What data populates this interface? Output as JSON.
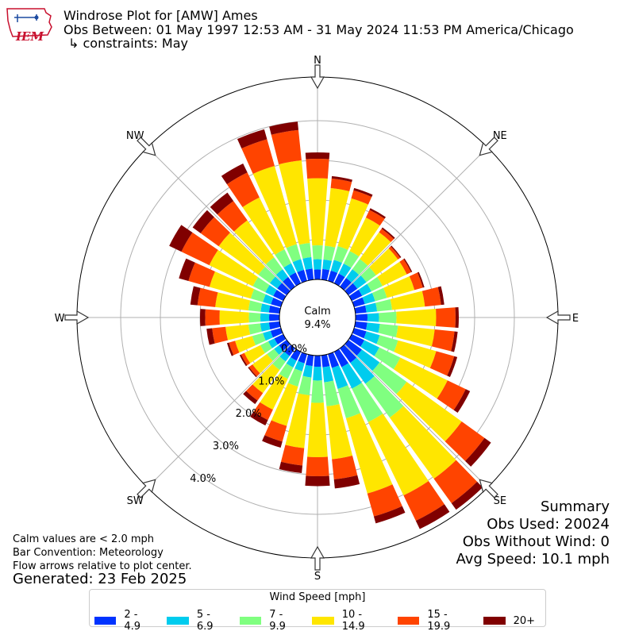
{
  "header": {
    "title": "Windrose Plot for [AMW] Ames",
    "period": "Obs Between: 01 May 1997 12:53 AM - 31 May 2024 11:53 PM America/Chicago",
    "constraints": "↳ constraints: May",
    "logo_text": "IEM"
  },
  "notes": {
    "calm_note": "Calm values are < 2.0 mph",
    "bar_convention": "Bar Convention: Meteorology",
    "flow_note": "Flow arrows relative to plot center.",
    "generated": "Generated: 23 Feb 2025"
  },
  "summary": {
    "heading": "Summary",
    "obs_used": "Obs Used: 20024",
    "obs_without_wind": "Obs Without Wind: 0",
    "avg_speed": "Avg Speed: 10.1 mph"
  },
  "legend": {
    "title": "Wind Speed [mph]",
    "items": [
      {
        "label": "2 - 4.9",
        "color": "#0033ff"
      },
      {
        "label": "5 - 6.9",
        "color": "#00ccee"
      },
      {
        "label": "7 - 9.9",
        "color": "#80ff80"
      },
      {
        "label": "10 - 14.9",
        "color": "#ffe600"
      },
      {
        "label": "15 - 19.9",
        "color": "#ff4400"
      },
      {
        "label": "20+",
        "color": "#800000"
      }
    ]
  },
  "chart_data": {
    "type": "windrose",
    "calm_label": "Calm",
    "calm_value": "9.4%",
    "radial_ticks": [
      "0.0%",
      "1.0%",
      "2.0%",
      "3.0%",
      "4.0%"
    ],
    "radial_tick_values": [
      0,
      1,
      2,
      3,
      4
    ],
    "compass_labels": [
      "N",
      "NE",
      "E",
      "SE",
      "S",
      "SW",
      "W",
      "NW"
    ],
    "directions_deg": [
      0,
      10,
      20,
      30,
      40,
      50,
      60,
      70,
      80,
      90,
      100,
      110,
      120,
      130,
      140,
      150,
      160,
      170,
      180,
      190,
      200,
      210,
      220,
      230,
      240,
      250,
      260,
      270,
      280,
      290,
      300,
      310,
      320,
      330,
      340,
      350
    ],
    "bins": [
      "2 - 4.9",
      "5 - 6.9",
      "7 - 9.9",
      "10 - 14.9",
      "15 - 19.9",
      "20+"
    ],
    "cumulative_percent": [
      [
        0.25,
        0.51,
        0.86,
        2.55,
        3.04,
        3.2
      ],
      [
        0.27,
        0.51,
        0.86,
        2.32,
        2.56,
        2.62
      ],
      [
        0.27,
        0.55,
        0.91,
        2.16,
        2.37,
        2.43
      ],
      [
        0.27,
        0.55,
        0.9,
        1.84,
        2.05,
        2.1
      ],
      [
        0.27,
        0.54,
        0.86,
        1.69,
        1.8,
        1.84
      ],
      [
        0.28,
        0.56,
        0.86,
        1.54,
        1.61,
        1.64
      ],
      [
        0.29,
        0.55,
        0.86,
        1.54,
        1.66,
        1.69
      ],
      [
        0.28,
        0.55,
        0.86,
        1.58,
        1.8,
        1.84
      ],
      [
        0.28,
        0.55,
        0.93,
        1.76,
        2.17,
        2.25
      ],
      [
        0.3,
        0.59,
        1.03,
        2.03,
        2.52,
        2.6
      ],
      [
        0.3,
        0.62,
        1.08,
        2.01,
        2.51,
        2.59
      ],
      [
        0.32,
        0.67,
        1.15,
        2.15,
        2.62,
        2.7
      ],
      [
        0.35,
        0.77,
        1.36,
        2.68,
        3.19,
        3.31
      ],
      [
        0.42,
        0.97,
        1.81,
        3.52,
        4.23,
        4.43
      ],
      [
        0.45,
        1.1,
        2.15,
        4.05,
        4.81,
        5.01
      ],
      [
        0.43,
        1.03,
        1.97,
        4.02,
        4.73,
        4.96
      ],
      [
        0.36,
        0.91,
        1.68,
        3.65,
        4.25,
        4.43
      ],
      [
        0.3,
        0.68,
        1.29,
        2.63,
        3.14,
        3.37
      ],
      [
        0.28,
        0.63,
        1.19,
        2.56,
        3.04,
        3.29
      ],
      [
        0.27,
        0.56,
        1.01,
        2.35,
        2.79,
        2.98
      ],
      [
        0.24,
        0.45,
        0.85,
        1.88,
        2.29,
        2.45
      ],
      [
        0.25,
        0.44,
        0.76,
        1.62,
        1.91,
        2.06
      ],
      [
        0.24,
        0.41,
        0.67,
        1.39,
        1.62,
        1.73
      ],
      [
        0.24,
        0.39,
        0.61,
        1.06,
        1.17,
        1.2
      ],
      [
        0.25,
        0.42,
        0.64,
        1.09,
        1.18,
        1.22
      ],
      [
        0.27,
        0.47,
        0.75,
        1.2,
        1.36,
        1.41
      ],
      [
        0.27,
        0.49,
        0.79,
        1.37,
        1.71,
        1.85
      ],
      [
        0.26,
        0.48,
        0.77,
        1.51,
        1.87,
        2.0
      ],
      [
        0.27,
        0.48,
        0.79,
        1.63,
        2.08,
        2.26
      ],
      [
        0.26,
        0.47,
        0.79,
        1.87,
        2.42,
        2.67
      ],
      [
        0.28,
        0.5,
        0.85,
        2.07,
        2.85,
        3.19
      ],
      [
        0.29,
        0.52,
        0.88,
        2.11,
        2.67,
        2.92
      ],
      [
        0.3,
        0.54,
        0.91,
        2.06,
        2.66,
        2.92
      ],
      [
        0.3,
        0.56,
        0.95,
        2.4,
        3.1,
        3.35
      ],
      [
        0.29,
        0.57,
        0.96,
        3.01,
        3.71,
        3.97
      ],
      [
        0.28,
        0.57,
        0.93,
        3.02,
        3.79,
        4.0
      ]
    ]
  }
}
